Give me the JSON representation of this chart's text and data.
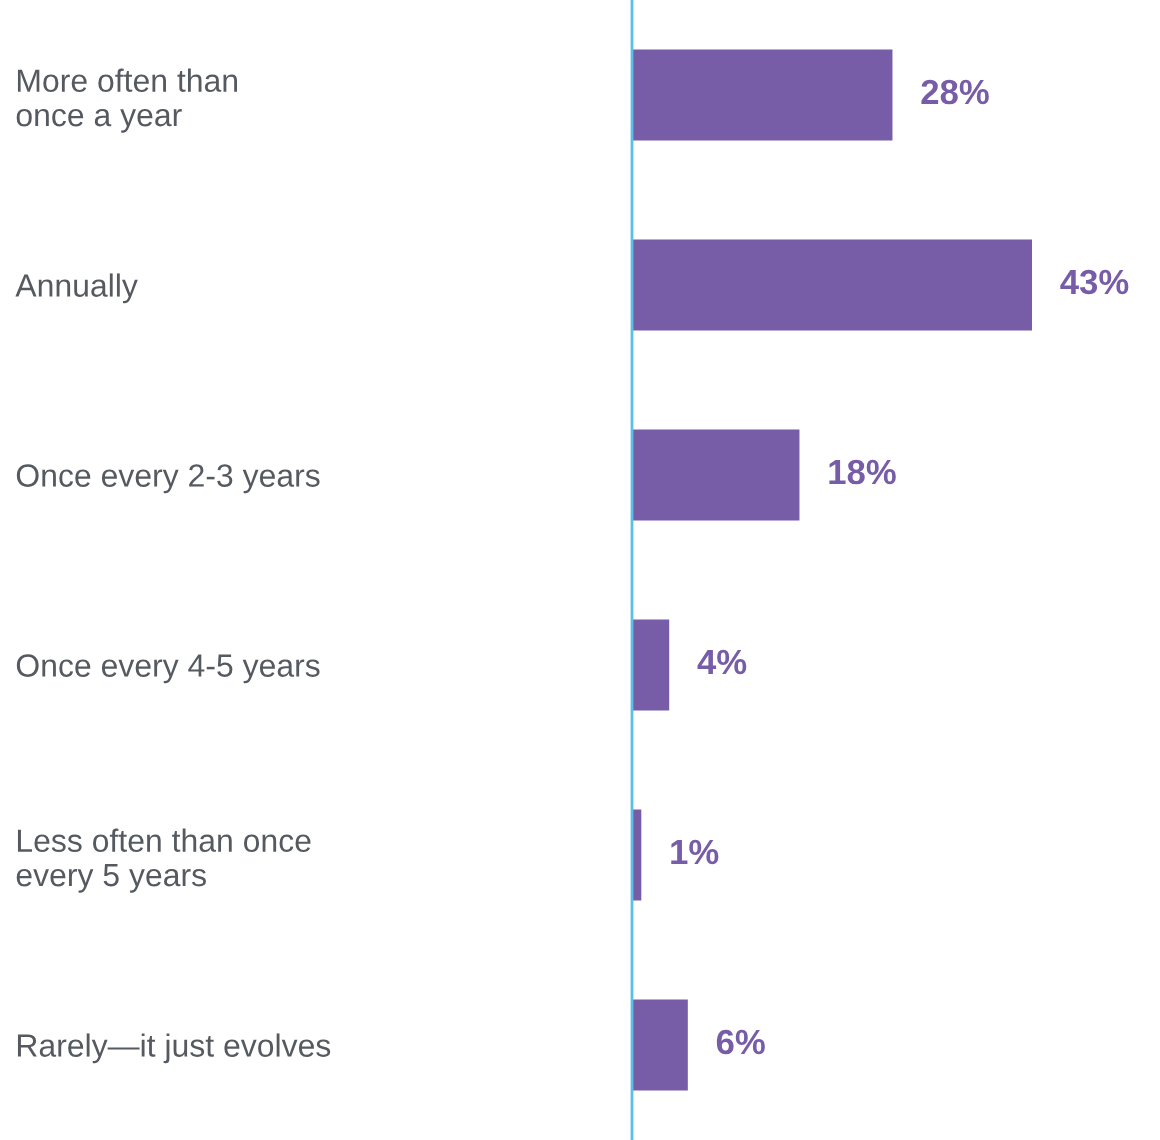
{
  "chart_data": {
    "type": "bar",
    "orientation": "horizontal",
    "categories": [
      "More often than\nonce a year",
      "Annually",
      "Once every 2-3 years",
      "Once every 4-5 years",
      "Less often than once\nevery 5 years",
      "Rarely—it just evolves"
    ],
    "values": [
      28,
      43,
      18,
      4,
      1,
      6
    ],
    "value_labels": [
      "28%",
      "43%",
      "18%",
      "4%",
      "1%",
      "6%"
    ],
    "color": "#775ca8",
    "grid": false,
    "legend": false
  }
}
